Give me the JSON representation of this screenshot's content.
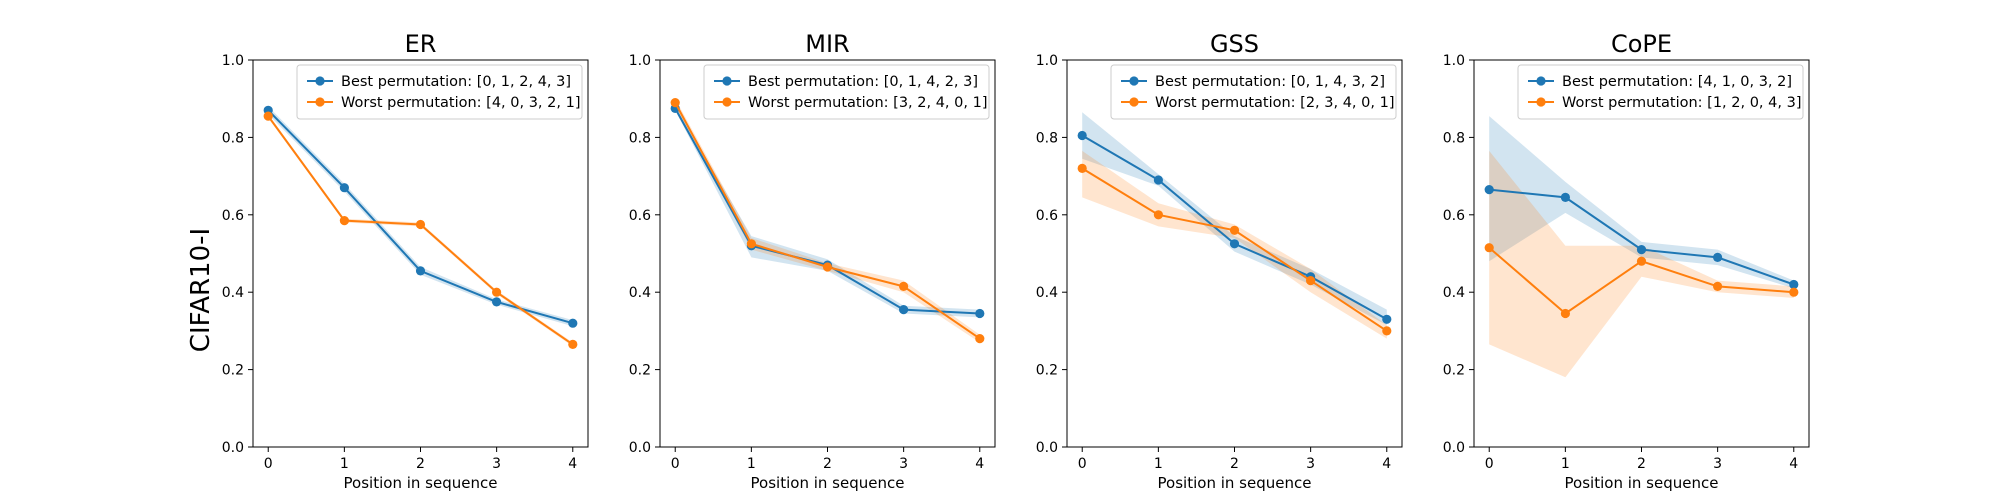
{
  "colors": {
    "best": "#1f77b4",
    "worst": "#ff7f0e"
  },
  "chart_data": {
    "type": "line",
    "row_label": "CIFAR10-I",
    "xlabel": "Position in sequence",
    "ylim": [
      0,
      1
    ],
    "xlim": [
      -0.2,
      4.2
    ],
    "x": [
      0,
      1,
      2,
      3,
      4
    ],
    "yticks": [
      "0.0",
      "0.2",
      "0.4",
      "0.6",
      "0.8",
      "1.0"
    ],
    "xticks": [
      "0",
      "1",
      "2",
      "3",
      "4"
    ],
    "grid": false,
    "legend_position": "top-right",
    "panels": [
      {
        "title": "ER",
        "series": [
          {
            "name": "Best permutation: [0, 1, 2, 4, 3]",
            "values": [
              0.87,
              0.67,
              0.455,
              0.375,
              0.32
            ],
            "band_low": [
              0.86,
              0.66,
              0.445,
              0.368,
              0.312
            ],
            "band_high": [
              0.88,
              0.68,
              0.465,
              0.382,
              0.328
            ]
          },
          {
            "name": "Worst permutation: [4, 0, 3, 2, 1]",
            "values": [
              0.855,
              0.585,
              0.575,
              0.4,
              0.265
            ],
            "band_low": [
              0.85,
              0.58,
              0.57,
              0.395,
              0.26
            ],
            "band_high": [
              0.86,
              0.59,
              0.58,
              0.405,
              0.27
            ]
          }
        ]
      },
      {
        "title": "MIR",
        "series": [
          {
            "name": "Best permutation: [0, 1, 4, 2, 3]",
            "values": [
              0.875,
              0.52,
              0.47,
              0.355,
              0.345
            ],
            "band_low": [
              0.87,
              0.49,
              0.455,
              0.345,
              0.335
            ],
            "band_high": [
              0.885,
              0.545,
              0.485,
              0.365,
              0.355
            ]
          },
          {
            "name": "Worst permutation: [3, 2, 4, 0, 1]",
            "values": [
              0.89,
              0.525,
              0.465,
              0.415,
              0.28
            ],
            "band_low": [
              0.88,
              0.51,
              0.455,
              0.4,
              0.27
            ],
            "band_high": [
              0.9,
              0.54,
              0.475,
              0.43,
              0.29
            ]
          }
        ]
      },
      {
        "title": "GSS",
        "series": [
          {
            "name": "Best permutation: [0, 1, 4, 3, 2]",
            "values": [
              0.805,
              0.69,
              0.525,
              0.44,
              0.33
            ],
            "band_low": [
              0.745,
              0.675,
              0.505,
              0.42,
              0.315
            ],
            "band_high": [
              0.865,
              0.705,
              0.545,
              0.46,
              0.355
            ]
          },
          {
            "name": "Worst permutation: [2, 3, 4, 0, 1]",
            "values": [
              0.72,
              0.6,
              0.56,
              0.43,
              0.3
            ],
            "band_low": [
              0.645,
              0.57,
              0.54,
              0.4,
              0.28
            ],
            "band_high": [
              0.765,
              0.63,
              0.575,
              0.46,
              0.315
            ]
          }
        ]
      },
      {
        "title": "CoPE",
        "series": [
          {
            "name": "Best permutation: [4, 1, 0, 3, 2]",
            "values": [
              0.665,
              0.645,
              0.51,
              0.49,
              0.42
            ],
            "band_low": [
              0.48,
              0.605,
              0.49,
              0.47,
              0.41
            ],
            "band_high": [
              0.855,
              0.685,
              0.53,
              0.51,
              0.43
            ]
          },
          {
            "name": "Worst permutation: [1, 2, 0, 4, 3]",
            "values": [
              0.515,
              0.345,
              0.48,
              0.415,
              0.4
            ],
            "band_low": [
              0.265,
              0.18,
              0.44,
              0.4,
              0.385
            ],
            "band_high": [
              0.765,
              0.52,
              0.52,
              0.43,
              0.415
            ]
          }
        ]
      }
    ]
  }
}
